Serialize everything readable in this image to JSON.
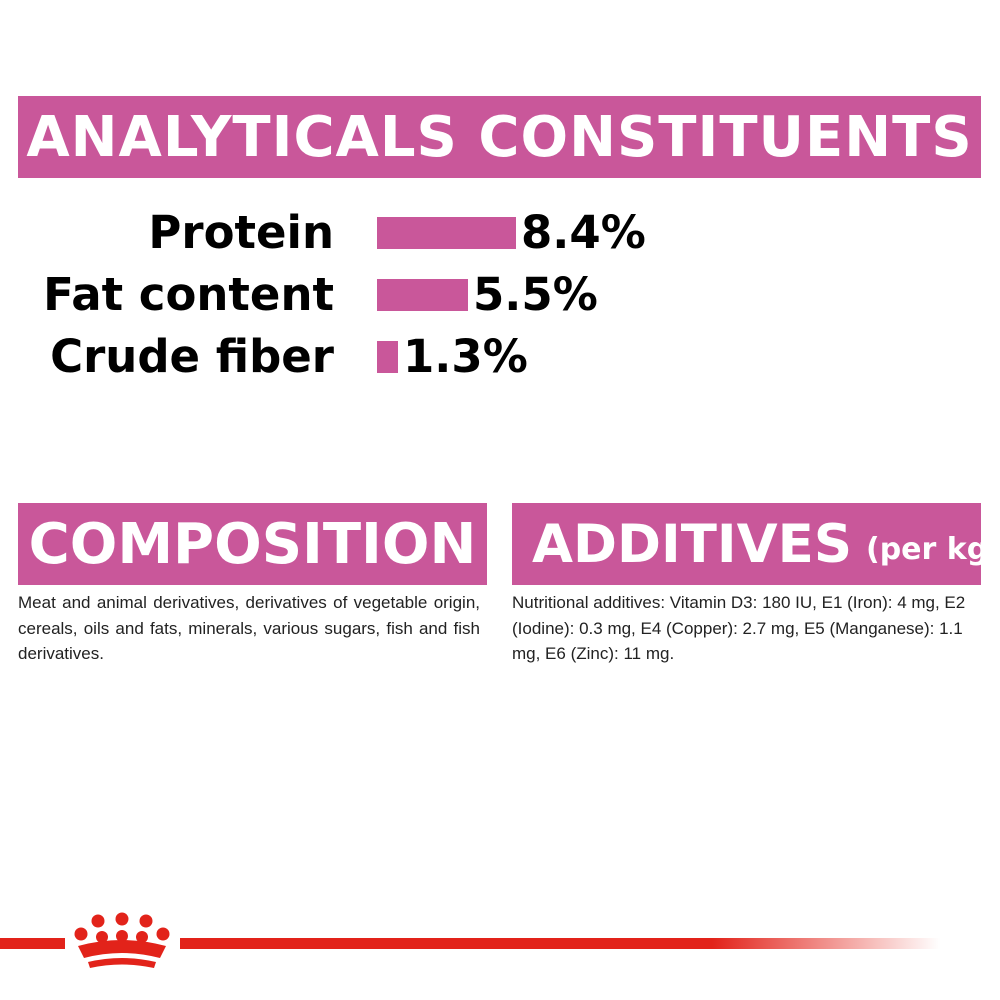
{
  "analyticals": {
    "title": "ANALYTICALS CONSTITUENTS"
  },
  "constituents": [
    {
      "label": "Protein",
      "value": "8.4%",
      "amount": 8.4
    },
    {
      "label": "Fat content",
      "value": "5.5%",
      "amount": 5.5
    },
    {
      "label": "Crude fiber",
      "value": "1.3%",
      "amount": 1.3
    }
  ],
  "composition": {
    "title": "COMPOSITION",
    "text": "Meat and animal derivatives, derivatives of vegetable origin, cereals, oils and fats, minerals, various sugars, fish and fish derivatives."
  },
  "additives": {
    "title": "ADDITIVES",
    "unit": "(per kg)",
    "text": "Nutritional additives: Vitamin D3: 180 IU, E1 (Iron): 4 mg, E2 (Iodine): 0.3 mg, E4 (Copper): 2.7 mg, E5 (Manganese): 1.1 mg, E6 (Zinc): 11 mg."
  },
  "colors": {
    "accent": "#c9579a",
    "brand_red": "#e2231a"
  },
  "icons": {
    "logo": "crown-icon"
  }
}
